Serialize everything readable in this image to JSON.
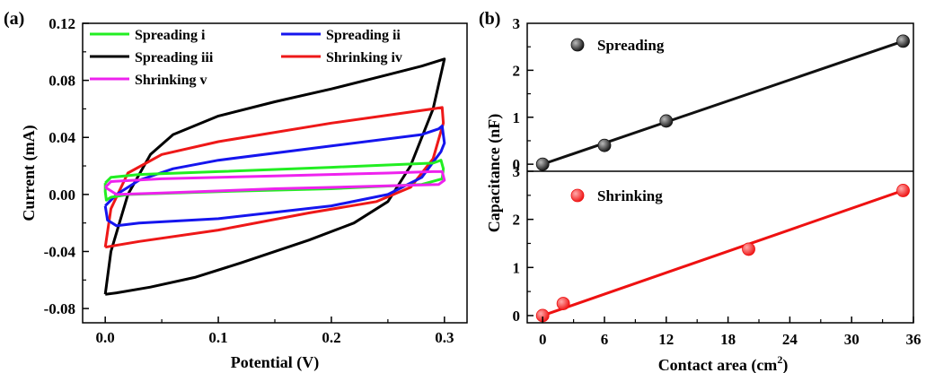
{
  "chart_data": [
    {
      "panel_label": "(a)",
      "type": "line",
      "xlabel": "Potential (V)",
      "ylabel": "Current (mA)",
      "xlim": [
        -0.02,
        0.32
      ],
      "ylim": [
        -0.09,
        0.12
      ],
      "xticks": [
        "0.0",
        "0.1",
        "0.2",
        "0.3"
      ],
      "xtick_values": [
        0.0,
        0.1,
        0.2,
        0.3
      ],
      "yticks": [
        "-0.08",
        "-0.04",
        "0.00",
        "0.04",
        "0.08",
        "0.12"
      ],
      "ytick_values": [
        -0.08,
        -0.04,
        0.0,
        0.04,
        0.08,
        0.12
      ],
      "legend_position": "top",
      "series": [
        {
          "name": "Spreading i",
          "color": "#22ee22",
          "points": [
            [
              0.0,
              0.008
            ],
            [
              0.005,
              0.012
            ],
            [
              0.03,
              0.014
            ],
            [
              0.1,
              0.016
            ],
            [
              0.2,
              0.019
            ],
            [
              0.29,
              0.022
            ],
            [
              0.297,
              0.024
            ],
            [
              0.299,
              0.018
            ],
            [
              0.298,
              0.011
            ],
            [
              0.28,
              0.007
            ],
            [
              0.2,
              0.004
            ],
            [
              0.1,
              0.002
            ],
            [
              0.02,
              0.0
            ],
            [
              0.005,
              -0.002
            ],
            [
              0.001,
              -0.004
            ],
            [
              0.0,
              0.002
            ],
            [
              0.0,
              0.008
            ]
          ]
        },
        {
          "name": "Spreading ii",
          "color": "#1515ee",
          "points": [
            [
              0.0,
              -0.008
            ],
            [
              0.01,
              0.0
            ],
            [
              0.03,
              0.01
            ],
            [
              0.06,
              0.018
            ],
            [
              0.1,
              0.024
            ],
            [
              0.2,
              0.034
            ],
            [
              0.28,
              0.042
            ],
            [
              0.295,
              0.046
            ],
            [
              0.298,
              0.048
            ],
            [
              0.3,
              0.036
            ],
            [
              0.297,
              0.03
            ],
            [
              0.28,
              0.012
            ],
            [
              0.25,
              0.0
            ],
            [
              0.2,
              -0.008
            ],
            [
              0.1,
              -0.017
            ],
            [
              0.03,
              -0.02
            ],
            [
              0.01,
              -0.022
            ],
            [
              0.002,
              -0.018
            ],
            [
              0.0,
              -0.008
            ]
          ]
        },
        {
          "name": "Spreading iii",
          "color": "#000000",
          "points": [
            [
              0.0,
              -0.07
            ],
            [
              0.005,
              -0.04
            ],
            [
              0.02,
              0.0
            ],
            [
              0.04,
              0.028
            ],
            [
              0.06,
              0.042
            ],
            [
              0.1,
              0.055
            ],
            [
              0.15,
              0.065
            ],
            [
              0.2,
              0.074
            ],
            [
              0.25,
              0.084
            ],
            [
              0.28,
              0.09
            ],
            [
              0.3,
              0.095
            ],
            [
              0.29,
              0.06
            ],
            [
              0.27,
              0.02
            ],
            [
              0.25,
              -0.005
            ],
            [
              0.22,
              -0.02
            ],
            [
              0.18,
              -0.032
            ],
            [
              0.12,
              -0.048
            ],
            [
              0.08,
              -0.058
            ],
            [
              0.04,
              -0.065
            ],
            [
              0.01,
              -0.069
            ],
            [
              0.0,
              -0.07
            ]
          ]
        },
        {
          "name": "Shrinking iv",
          "color": "#ee1818",
          "points": [
            [
              0.0,
              -0.037
            ],
            [
              0.005,
              -0.01
            ],
            [
              0.02,
              0.015
            ],
            [
              0.05,
              0.028
            ],
            [
              0.1,
              0.037
            ],
            [
              0.2,
              0.05
            ],
            [
              0.29,
              0.06
            ],
            [
              0.298,
              0.061
            ],
            [
              0.299,
              0.05
            ],
            [
              0.29,
              0.025
            ],
            [
              0.27,
              0.005
            ],
            [
              0.24,
              -0.005
            ],
            [
              0.18,
              -0.013
            ],
            [
              0.1,
              -0.025
            ],
            [
              0.03,
              -0.033
            ],
            [
              0.0,
              -0.037
            ]
          ]
        },
        {
          "name": "Shrinking v",
          "color": "#ee22ee",
          "points": [
            [
              0.0,
              0.005
            ],
            [
              0.005,
              0.009
            ],
            [
              0.05,
              0.011
            ],
            [
              0.15,
              0.013
            ],
            [
              0.25,
              0.015
            ],
            [
              0.29,
              0.016
            ],
            [
              0.298,
              0.016
            ],
            [
              0.3,
              0.01
            ],
            [
              0.295,
              0.007
            ],
            [
              0.25,
              0.006
            ],
            [
              0.15,
              0.004
            ],
            [
              0.05,
              0.001
            ],
            [
              0.01,
              0.0
            ],
            [
              0.0,
              0.005
            ]
          ]
        }
      ]
    },
    {
      "panel_label": "(b)",
      "type": "scatter",
      "xlabel": "Contact area (cm",
      "xlabel_sup": "2",
      "xlabel_tail": ")",
      "ylabel": "Capacitance (nF)",
      "xlim": [
        -1.5,
        36
      ],
      "xticks": [
        "0",
        "6",
        "12",
        "18",
        "24",
        "30",
        "36"
      ],
      "xtick_values": [
        0,
        6,
        12,
        18,
        24,
        30,
        36
      ],
      "subplots": [
        {
          "name": "Spreading",
          "color": "#111111",
          "highlight": "#bbbbbb",
          "ylim": [
            -0.15,
            3.0
          ],
          "yticks": [
            "0",
            "1",
            "2",
            "3"
          ],
          "ytick_values": [
            0,
            1,
            2,
            3
          ],
          "x": [
            0,
            6,
            12,
            35
          ],
          "y": [
            0.0,
            0.4,
            0.92,
            2.62
          ],
          "fit": [
            [
              0,
              0.0
            ],
            [
              35,
              2.62
            ]
          ]
        },
        {
          "name": "Shrinking",
          "color": "#ee1111",
          "highlight": "#ffaaaa",
          "ylim": [
            -0.15,
            3.0
          ],
          "yticks": [
            "0",
            "1",
            "2",
            "3"
          ],
          "ytick_values": [
            0,
            1,
            2,
            3
          ],
          "x": [
            0,
            2,
            20,
            35
          ],
          "y": [
            0.0,
            0.25,
            1.38,
            2.6
          ],
          "fit": [
            [
              0,
              0.0
            ],
            [
              35,
              2.6
            ]
          ]
        }
      ]
    }
  ]
}
